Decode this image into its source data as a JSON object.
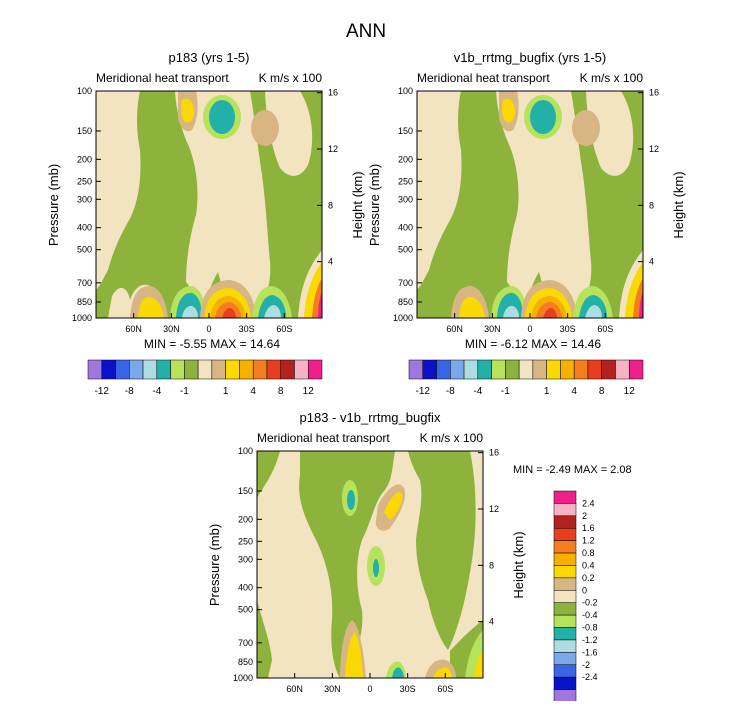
{
  "page_title": "ANN",
  "colors": {
    "green": "#8DB33C",
    "tan": "#F2E4C1",
    "brown": "#D8B684",
    "yellow": "#F9D900",
    "gold": "#F7B000",
    "orange": "#F47D1F",
    "red": "#E63E1E",
    "darkred": "#B42121",
    "pink": "#F7B2C5",
    "magenta": "#F0208A",
    "lightgreen": "#B6E25C",
    "teal": "#22B0A8",
    "lightblue": "#ADDCE1",
    "cornflower": "#7AA9EB",
    "blue": "#3A64E6",
    "navy": "#0A12C8",
    "purple": "#9E78DC"
  },
  "chart_data": [
    {
      "id": "panel1",
      "type": "contour",
      "title": "p183 (yrs 1-5)",
      "subtitle_left": "Meridional heat transport",
      "subtitle_right": "K m/s x 100",
      "ylabel": "Pressure (mb)",
      "ylabel_right": "Height (km)",
      "x_ticks": [
        "60N",
        "30N",
        "0",
        "30S",
        "60S"
      ],
      "x_values": [
        60,
        30,
        0,
        -30,
        -60
      ],
      "xlim": [
        90,
        -90
      ],
      "p_ticks": [
        "100",
        "150",
        "200",
        "250",
        "300",
        "400",
        "500",
        "700",
        "850",
        "1000"
      ],
      "p_values": [
        100,
        150,
        200,
        250,
        300,
        400,
        500,
        700,
        850,
        1000
      ],
      "ylim": [
        100,
        1000
      ],
      "h_ticks": [
        "16",
        "12",
        "8",
        "4"
      ],
      "h_values": [
        16,
        12,
        8,
        4
      ],
      "min_label": "MIN = -5.55  MAX = 14.64",
      "colorbar": {
        "orientation": "horizontal",
        "labels": [
          "-12",
          "-8",
          "-4",
          "-1",
          "1",
          "4",
          "8",
          "12"
        ],
        "colors": [
          "purple",
          "navy",
          "blue",
          "cornflower",
          "lightblue",
          "teal",
          "lightgreen",
          "green",
          "tan",
          "brown",
          "yellow",
          "gold",
          "orange",
          "red",
          "darkred",
          "pink",
          "magenta"
        ]
      }
    },
    {
      "id": "panel2",
      "type": "contour",
      "title": "v1b_rrtmg_bugfix (yrs 1-5)",
      "subtitle_left": "Meridional heat transport",
      "subtitle_right": "K m/s x 100",
      "ylabel": "Pressure (mb)",
      "ylabel_right": "Height (km)",
      "x_ticks": [
        "60N",
        "30N",
        "0",
        "30S",
        "60S"
      ],
      "x_values": [
        60,
        30,
        0,
        -30,
        -60
      ],
      "xlim": [
        90,
        -90
      ],
      "p_ticks": [
        "100",
        "150",
        "200",
        "250",
        "300",
        "400",
        "500",
        "700",
        "850",
        "1000"
      ],
      "p_values": [
        100,
        150,
        200,
        250,
        300,
        400,
        500,
        700,
        850,
        1000
      ],
      "ylim": [
        100,
        1000
      ],
      "h_ticks": [
        "16",
        "12",
        "8",
        "4"
      ],
      "h_values": [
        16,
        12,
        8,
        4
      ],
      "min_label": "MIN = -6.12  MAX = 14.46",
      "colorbar": {
        "orientation": "horizontal",
        "labels": [
          "-12",
          "-8",
          "-4",
          "-1",
          "1",
          "4",
          "8",
          "12"
        ],
        "colors": [
          "purple",
          "navy",
          "blue",
          "cornflower",
          "lightblue",
          "teal",
          "lightgreen",
          "green",
          "tan",
          "brown",
          "yellow",
          "gold",
          "orange",
          "red",
          "darkred",
          "pink",
          "magenta"
        ]
      }
    },
    {
      "id": "panel3",
      "type": "contour",
      "title": "p183 - v1b_rrtmg_bugfix",
      "subtitle_left": "Meridional heat transport",
      "subtitle_right": "K m/s x 100",
      "ylabel": "Pressure (mb)",
      "ylabel_right": "Height (km)",
      "x_ticks": [
        "60N",
        "30N",
        "0",
        "30S",
        "60S"
      ],
      "x_values": [
        60,
        30,
        0,
        -30,
        -60
      ],
      "xlim": [
        90,
        -90
      ],
      "p_ticks": [
        "100",
        "150",
        "200",
        "250",
        "300",
        "400",
        "500",
        "700",
        "850",
        "1000"
      ],
      "p_values": [
        100,
        150,
        200,
        250,
        300,
        400,
        500,
        700,
        850,
        1000
      ],
      "ylim": [
        100,
        1000
      ],
      "h_ticks": [
        "16",
        "12",
        "8",
        "4"
      ],
      "h_values": [
        16,
        12,
        8,
        4
      ],
      "min_label": "MIN = -2.49  MAX =  2.08",
      "colorbar": {
        "orientation": "vertical",
        "labels": [
          "2.4",
          "2",
          "1.6",
          "1.2",
          "0.8",
          "0.4",
          "0.2",
          "0",
          "-0.2",
          "-0.4",
          "-0.8",
          "-1.2",
          "-1.6",
          "-2",
          "-2.4"
        ],
        "colors": [
          "magenta",
          "pink",
          "darkred",
          "red",
          "orange",
          "gold",
          "yellow",
          "brown",
          "tan",
          "green",
          "lightgreen",
          "teal",
          "lightblue",
          "cornflower",
          "blue",
          "navy",
          "purple"
        ]
      }
    }
  ]
}
